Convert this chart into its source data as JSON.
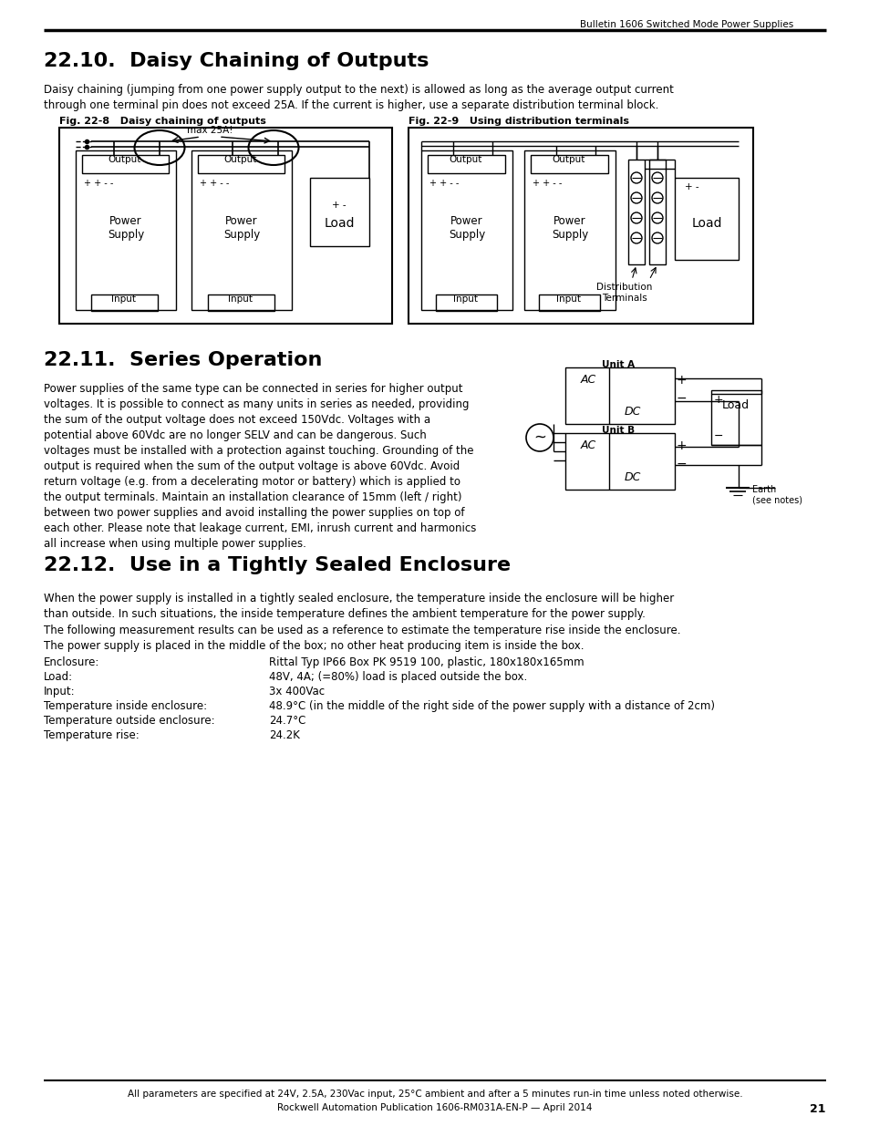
{
  "header_right": "Bulletin 1606 Switched Mode Power Supplies",
  "section1_title": "22.10.  Daisy Chaining of Outputs",
  "section1_body": "Daisy chaining (jumping from one power supply output to the next) is allowed as long as the average output current\nthrough one terminal pin does not exceed 25A. If the current is higher, use a separate distribution terminal block.",
  "fig1_label": "Fig. 22-8   Daisy chaining of outputs",
  "fig2_label": "Fig. 22-9   Using distribution terminals",
  "section2_title": "22.11.  Series Operation",
  "section2_body": "Power supplies of the same type can be connected in series for higher output\nvoltages. It is possible to connect as many units in series as needed, providing\nthe sum of the output voltage does not exceed 150Vdc. Voltages with a\npotential above 60Vdc are no longer SELV and can be dangerous. Such\nvoltages must be installed with a protection against touching. Grounding of the\noutput is required when the sum of the output voltage is above 60Vdc. Avoid\nreturn voltage (e.g. from a decelerating motor or battery) which is applied to\nthe output terminals. Maintain an installation clearance of 15mm (left / right)\nbetween two power supplies and avoid installing the power supplies on top of\neach other. Please note that leakage current, EMI, inrush current and harmonics\nall increase when using multiple power supplies.",
  "section3_title": "22.12.  Use in a Tightly Sealed Enclosure",
  "section3_intro1": "When the power supply is installed in a tightly sealed enclosure, the temperature inside the enclosure will be higher\nthan outside. In such situations, the inside temperature defines the ambient temperature for the power supply.",
  "section3_intro2": "The following measurement results can be used as a reference to estimate the temperature rise inside the enclosure.",
  "section3_intro3": "The power supply is placed in the middle of the box; no other heat producing item is inside the box.",
  "spec_labels": [
    "Enclosure:",
    "Load:",
    "Input:",
    "Temperature inside enclosure:",
    "Temperature outside enclosure:",
    "Temperature rise:"
  ],
  "spec_values": [
    "Rittal Typ IP66 Box PK 9519 100, plastic, 180x180x165mm",
    "48V, 4A; (=80%) load is placed outside the box.",
    "3x 400Vac",
    "48.9°C (in the middle of the right side of the power supply with a distance of 2cm)",
    "24.7°C",
    "24.2K"
  ],
  "footer_note": "All parameters are specified at 24V, 2.5A, 230Vac input, 25°C ambient and after a 5 minutes run-in time unless noted otherwise.",
  "footer_pub": "Rockwell Automation Publication 1606-RM031A-EN-P — April 2014",
  "footer_page": "21",
  "bg_color": "#ffffff"
}
